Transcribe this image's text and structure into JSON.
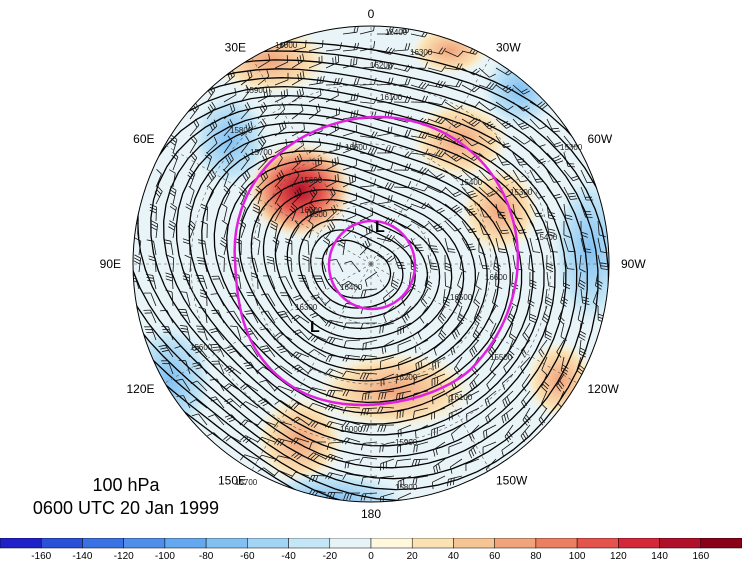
{
  "map": {
    "projection": "north polar stereographic",
    "longitude_labels": [
      {
        "text": "0",
        "lon": 0
      },
      {
        "text": "30W",
        "lon": -30
      },
      {
        "text": "60W",
        "lon": -60
      },
      {
        "text": "90W",
        "lon": -90
      },
      {
        "text": "120W",
        "lon": -120
      },
      {
        "text": "150W",
        "lon": -150
      },
      {
        "text": "180",
        "lon": 180
      },
      {
        "text": "150E",
        "lon": 150
      },
      {
        "text": "120E",
        "lon": 120
      },
      {
        "text": "90E",
        "lon": 90
      },
      {
        "text": "60E",
        "lon": 60
      },
      {
        "text": "30E",
        "lon": 30
      }
    ],
    "height_contour_labels": [
      "16400",
      "16300",
      "16200",
      "16100",
      "16000",
      "15900",
      "15800",
      "15700",
      "15600",
      "15500",
      "15400",
      "15300",
      "16500",
      "16600"
    ],
    "low_centers": [
      "L",
      "L"
    ],
    "highlight_contour_color": "#e020e0",
    "contour_color": "#000000"
  },
  "caption": {
    "line1": "100 hPa",
    "line2": "0600 UTC 20 Jan 1999"
  },
  "colorbar": {
    "ticks": [
      "-160",
      "-140",
      "-120",
      "-100",
      "-80",
      "-60",
      "-40",
      "-20",
      "0",
      "20",
      "40",
      "60",
      "80",
      "100",
      "120",
      "140",
      "160"
    ],
    "colors": [
      "#2020c8",
      "#2a4fd8",
      "#3a72e4",
      "#4f8fec",
      "#64a8f0",
      "#82c0f2",
      "#a2d4f4",
      "#c4e6f6",
      "#e6f4f8",
      "#fff8dc",
      "#fbe2b4",
      "#f6c596",
      "#f1a47c",
      "#ec7e62",
      "#e5544c",
      "#d4283a",
      "#b0102a",
      "#8a0018"
    ]
  }
}
